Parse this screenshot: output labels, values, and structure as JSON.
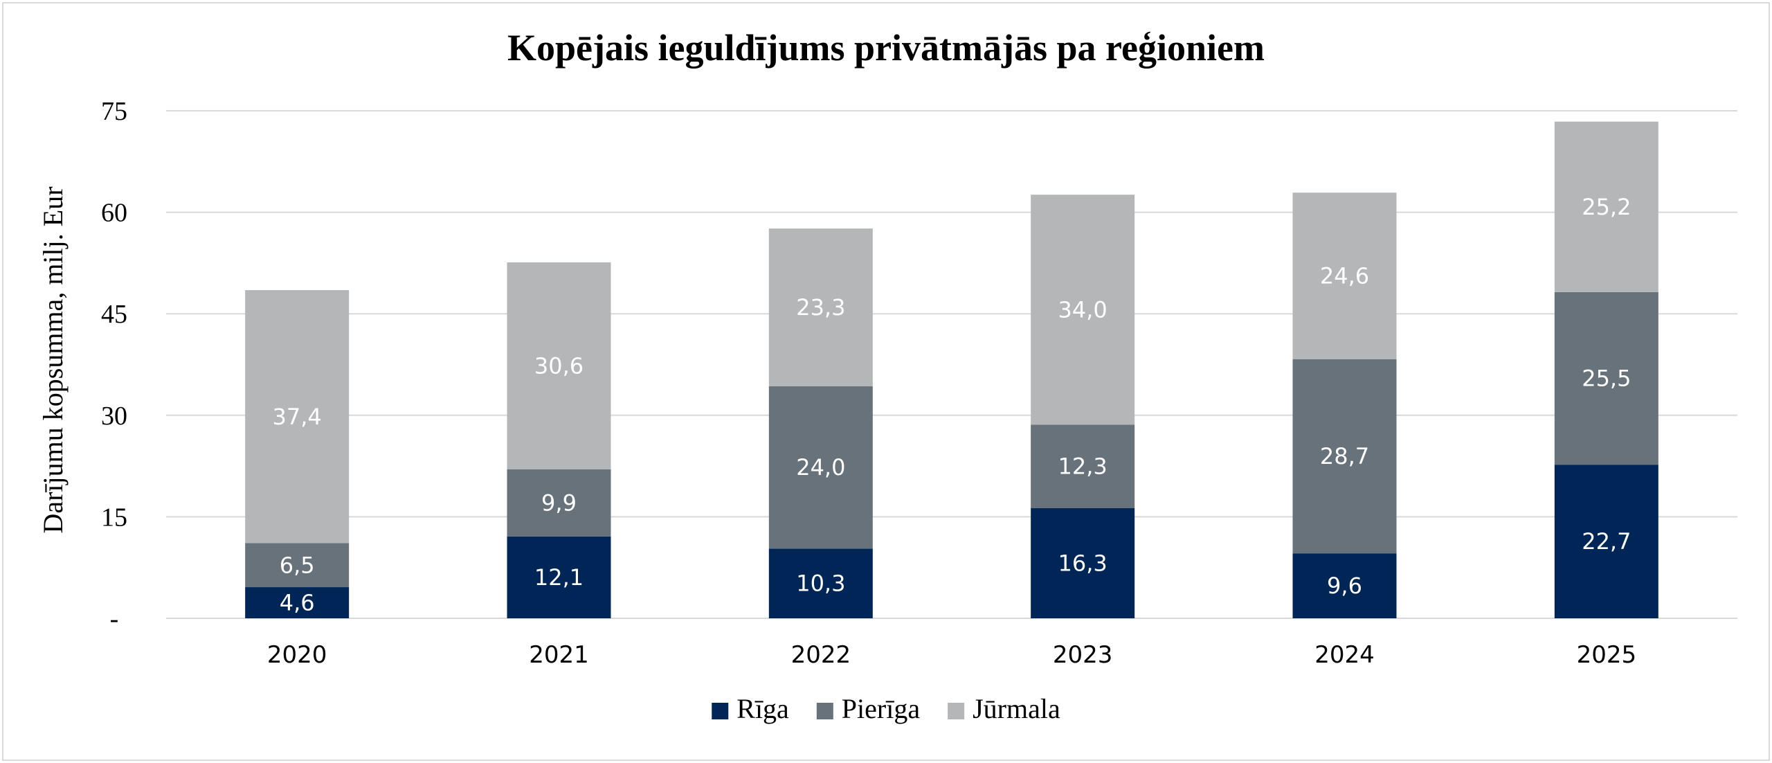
{
  "chart_data": {
    "type": "bar",
    "stacked": true,
    "title": "Kopējais ieguldījums privātmājās pa reģioniem",
    "ylabel": "Darījumu kopsumma, milj. Eur",
    "xlabel": "",
    "ylim": [
      0,
      75
    ],
    "yticks": [
      {
        "value": 0,
        "label": "-"
      },
      {
        "value": 15,
        "label": "15"
      },
      {
        "value": 30,
        "label": "30"
      },
      {
        "value": 45,
        "label": "45"
      },
      {
        "value": 60,
        "label": "60"
      },
      {
        "value": 75,
        "label": "75"
      }
    ],
    "grid": true,
    "legend_position": "bottom",
    "categories": [
      "2020",
      "2021",
      "2022",
      "2023",
      "2024",
      "2025"
    ],
    "series": [
      {
        "name": "Rīga",
        "color": "#002658",
        "values": [
          4.6,
          12.1,
          10.3,
          16.3,
          9.6,
          22.7
        ],
        "labels": [
          "4,6",
          "12,1",
          "10,3",
          "16,3",
          "9,6",
          "22,7"
        ]
      },
      {
        "name": "Pierīga",
        "color": "#67727b",
        "values": [
          6.5,
          9.9,
          24.0,
          12.3,
          28.7,
          25.5
        ],
        "labels": [
          "6,5",
          "9,9",
          "24,0",
          "12,3",
          "28,7",
          "25,5"
        ]
      },
      {
        "name": "Jūrmala",
        "color": "#b5b6b8",
        "values": [
          37.4,
          30.6,
          23.3,
          34.0,
          24.6,
          25.2
        ],
        "labels": [
          "37,4",
          "30,6",
          "23,3",
          "34,0",
          "24,6",
          "25,2"
        ]
      }
    ]
  }
}
